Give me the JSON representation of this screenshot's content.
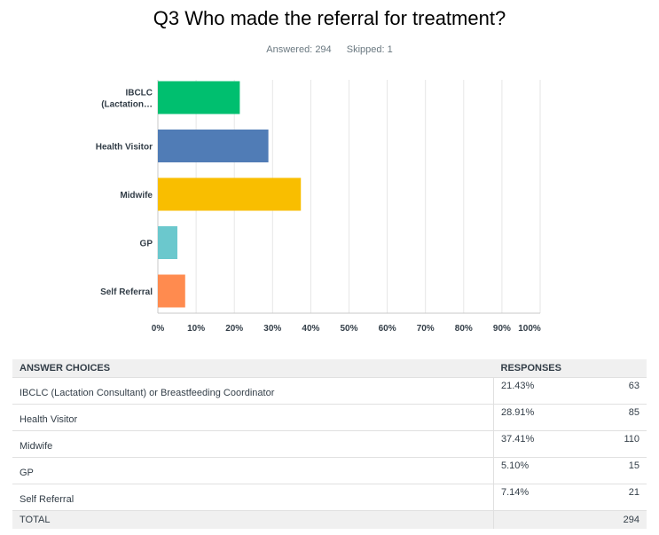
{
  "page": {
    "title": "Q3 Who made the referral for treatment?",
    "answered_label": "Answered:",
    "answered_value": "294",
    "skipped_label": "Skipped:",
    "skipped_value": "1"
  },
  "chart_data": {
    "type": "bar",
    "orientation": "horizontal",
    "categories": [
      "IBCLC (Lactation…",
      "Health Visitor",
      "Midwife",
      "GP",
      "Self Referral"
    ],
    "category_label_lines": [
      [
        "IBCLC",
        "(Lactation…"
      ],
      [
        "Health Visitor"
      ],
      [
        "Midwife"
      ],
      [
        "GP"
      ],
      [
        "Self Referral"
      ]
    ],
    "values": [
      21.43,
      28.91,
      37.41,
      5.1,
      7.14
    ],
    "colors": [
      "#00bf6f",
      "#507cb6",
      "#f9be00",
      "#6bc8cd",
      "#ff8b4f"
    ],
    "xlim": [
      0,
      100
    ],
    "xticks": [
      "0%",
      "10%",
      "20%",
      "30%",
      "40%",
      "50%",
      "60%",
      "70%",
      "80%",
      "90%",
      "100%"
    ],
    "grid": true,
    "gridline_color": "#e6e6e6"
  },
  "table": {
    "header": {
      "choices": "ANSWER CHOICES",
      "responses": "RESPONSES"
    },
    "rows": [
      {
        "choice": "IBCLC (Lactation Consultant) or Breastfeeding Coordinator",
        "percent": "21.43%",
        "count": "63"
      },
      {
        "choice": "Health Visitor",
        "percent": "28.91%",
        "count": "85"
      },
      {
        "choice": "Midwife",
        "percent": "37.41%",
        "count": "110"
      },
      {
        "choice": "GP",
        "percent": "5.10%",
        "count": "15"
      },
      {
        "choice": "Self Referral",
        "percent": "7.14%",
        "count": "21"
      }
    ],
    "total": {
      "label": "TOTAL",
      "count": "294"
    }
  }
}
